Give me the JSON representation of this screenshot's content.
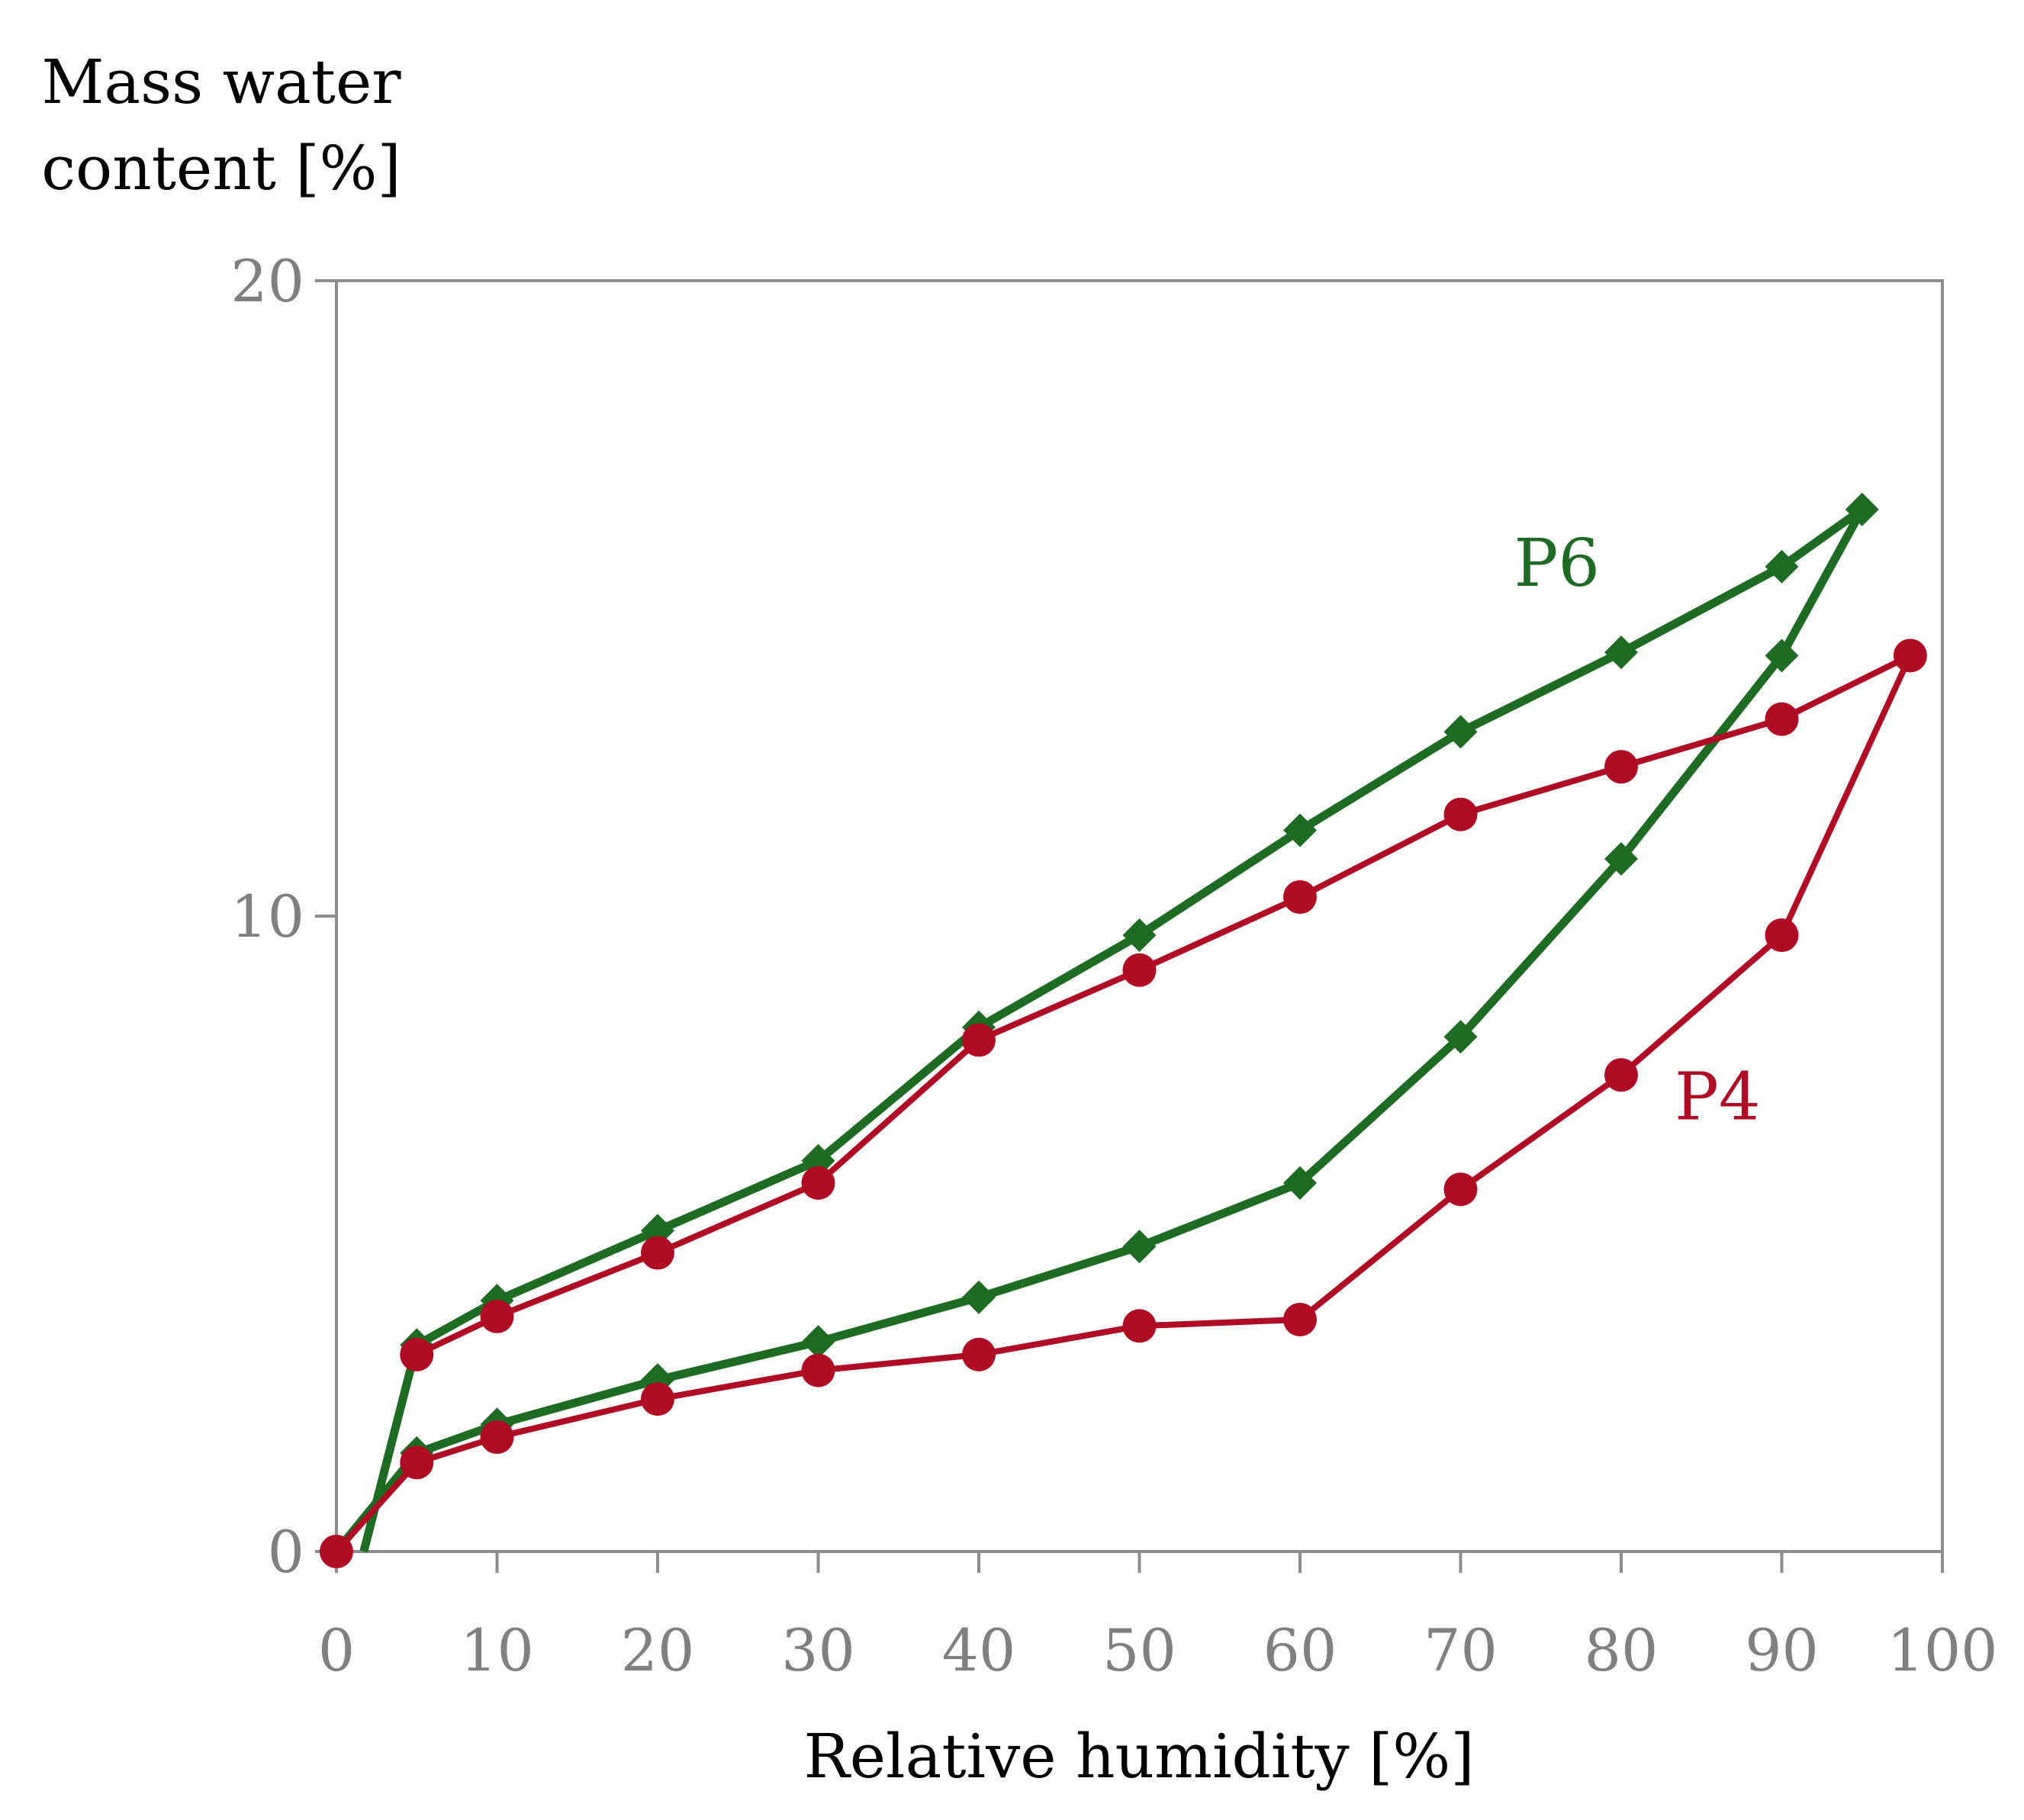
{
  "chart_data": {
    "type": "line",
    "title": "",
    "ylabel_lines": [
      "Mass water",
      "content [%]"
    ],
    "xlabel": "Relative humidity [%]",
    "xlim": [
      0,
      100
    ],
    "ylim": [
      0,
      20
    ],
    "xticks": [
      0,
      10,
      20,
      30,
      40,
      50,
      60,
      70,
      80,
      90,
      100
    ],
    "yticks": [
      0,
      10,
      20
    ],
    "grid": false,
    "legend": "none (direct labels on series)",
    "series": [
      {
        "name": "P6",
        "color": "#1e6b23",
        "marker": "diamond",
        "label_anchor": {
          "x": 76,
          "y": 15.2
        },
        "points": [
          {
            "x": 0,
            "y": 0
          },
          {
            "x": 5,
            "y": 1.55
          },
          {
            "x": 10,
            "y": 2.0
          },
          {
            "x": 20,
            "y": 2.7
          },
          {
            "x": 30,
            "y": 3.3
          },
          {
            "x": 40,
            "y": 4.0
          },
          {
            "x": 50,
            "y": 4.8
          },
          {
            "x": 60,
            "y": 5.8
          },
          {
            "x": 70,
            "y": 8.1
          },
          {
            "x": 80,
            "y": 10.9
          },
          {
            "x": 90,
            "y": 14.1
          },
          {
            "x": 95,
            "y": 16.4
          },
          {
            "x": 90,
            "y": 15.5
          },
          {
            "x": 80,
            "y": 14.15
          },
          {
            "x": 70,
            "y": 12.9
          },
          {
            "x": 60,
            "y": 11.35
          },
          {
            "x": 50,
            "y": 9.7
          },
          {
            "x": 40,
            "y": 8.25
          },
          {
            "x": 30,
            "y": 6.15
          },
          {
            "x": 20,
            "y": 5.05
          },
          {
            "x": 10,
            "y": 3.95
          },
          {
            "x": 5,
            "y": 3.25
          },
          {
            "x": 1.7,
            "y": 0
          }
        ]
      },
      {
        "name": "P4",
        "color": "#b00d25",
        "marker": "circle",
        "label_anchor": {
          "x": 86,
          "y": 6.8
        },
        "points": [
          {
            "x": 0,
            "y": 0
          },
          {
            "x": 5,
            "y": 1.4
          },
          {
            "x": 10,
            "y": 1.8
          },
          {
            "x": 20,
            "y": 2.4
          },
          {
            "x": 30,
            "y": 2.85
          },
          {
            "x": 40,
            "y": 3.1
          },
          {
            "x": 50,
            "y": 3.55
          },
          {
            "x": 60,
            "y": 3.65
          },
          {
            "x": 70,
            "y": 5.7
          },
          {
            "x": 80,
            "y": 7.5
          },
          {
            "x": 90,
            "y": 9.7
          },
          {
            "x": 98,
            "y": 14.1
          },
          {
            "x": 90,
            "y": 13.1
          },
          {
            "x": 80,
            "y": 12.35
          },
          {
            "x": 70,
            "y": 11.6
          },
          {
            "x": 60,
            "y": 10.3
          },
          {
            "x": 50,
            "y": 9.15
          },
          {
            "x": 40,
            "y": 8.05
          },
          {
            "x": 30,
            "y": 5.8
          },
          {
            "x": 20,
            "y": 4.7
          },
          {
            "x": 10,
            "y": 3.7
          },
          {
            "x": 5,
            "y": 3.1
          }
        ]
      }
    ]
  }
}
